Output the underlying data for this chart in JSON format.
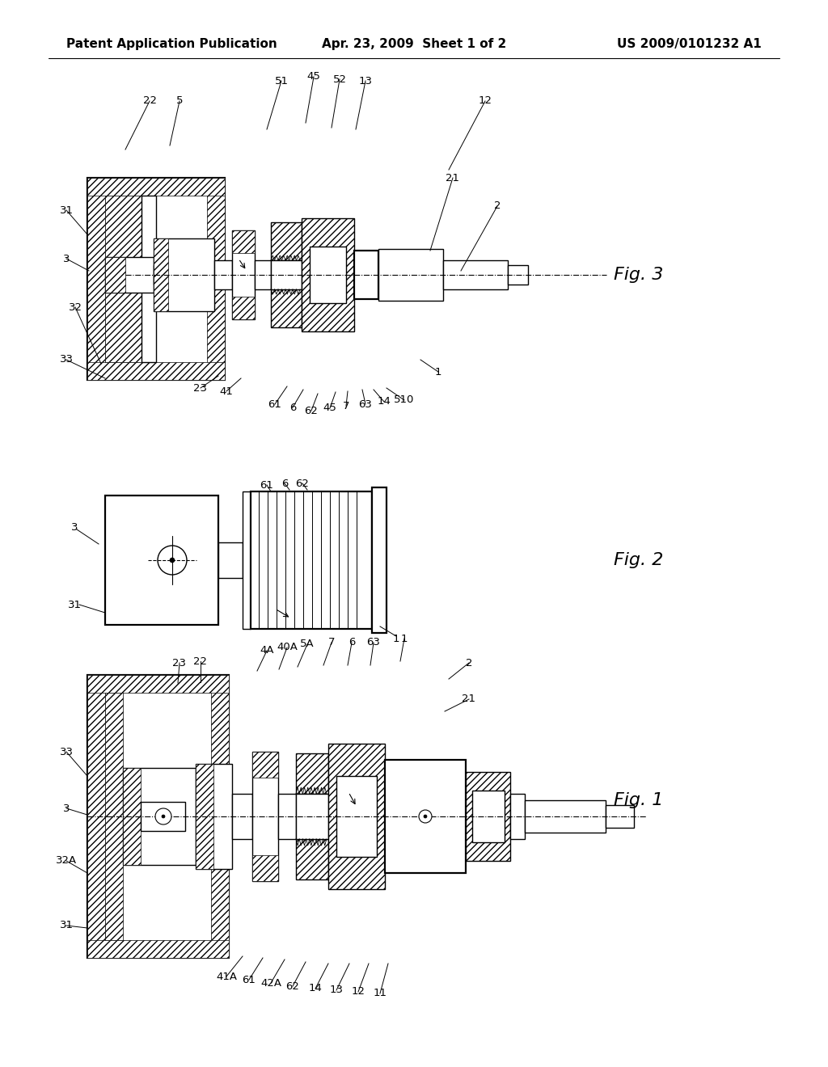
{
  "bg_color": "#ffffff",
  "line_color": "#000000",
  "header_left": "Patent Application Publication",
  "header_center": "Apr. 23, 2009  Sheet 1 of 2",
  "header_right": "US 2009/0101232 A1",
  "fig1_label": "Fig. 1",
  "fig2_label": "Fig. 2",
  "fig3_label": "Fig. 3",
  "header_fontsize": 11.5,
  "fig_label_fontsize": 16,
  "ref_fontsize": 9.5,
  "lw": 1.0,
  "lw2": 1.6
}
